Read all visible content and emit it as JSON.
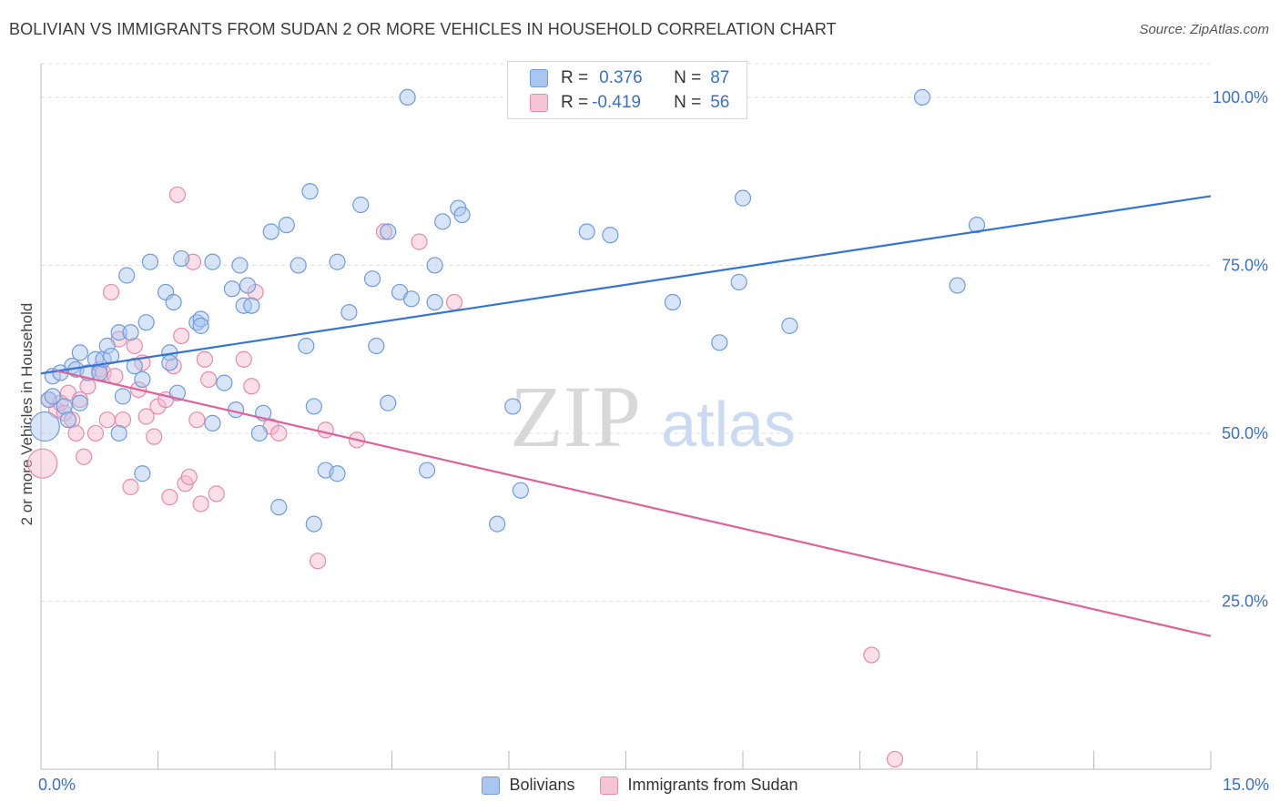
{
  "title": "BOLIVIAN VS IMMIGRANTS FROM SUDAN 2 OR MORE VEHICLES IN HOUSEHOLD CORRELATION CHART",
  "source": "Source: ZipAtlas.com",
  "watermark": {
    "zip": "ZIP",
    "atlas": "atlas"
  },
  "colors": {
    "blue_fill": "#a9c6f0",
    "blue_stroke": "#6f9bdc",
    "blue_line": "#3474d4",
    "pink_fill": "#f5b9cd",
    "pink_stroke": "#e88aaa",
    "pink_line": "#e0609a",
    "tick_label": "#3a6fd1",
    "grid": "#dddddd"
  },
  "legend_top": {
    "rows": [
      {
        "r_label": "R =",
        "r_value": "0.376",
        "n_label": "N =",
        "n_value": "87",
        "series": "blue"
      },
      {
        "r_label": "R =",
        "r_value": "-0.419",
        "n_label": "N =",
        "n_value": "56",
        "series": "pink"
      }
    ]
  },
  "chart_data": {
    "type": "scatter",
    "title": "BOLIVIAN VS IMMIGRANTS FROM SUDAN 2 OR MORE VEHICLES IN HOUSEHOLD CORRELATION CHART",
    "xlabel": "",
    "ylabel": "2 or more Vehicles in Household",
    "xlim": [
      0,
      15
    ],
    "ylim": [
      0,
      105
    ],
    "x_tick_labels": [
      "0.0%",
      "15.0%"
    ],
    "y_ticks": [
      25,
      50,
      75,
      100
    ],
    "y_tick_labels": [
      "25.0%",
      "50.0%",
      "75.0%",
      "100.0%"
    ],
    "grid": true,
    "legend_placement": "bottom",
    "series": [
      {
        "name": "Bolivians",
        "color": "#6f9bdc",
        "trend": {
          "x": [
            0,
            15
          ],
          "y": [
            58.9,
            85.3
          ]
        },
        "points": [
          [
            0.05,
            51
          ],
          [
            0.1,
            55
          ],
          [
            0.15,
            55.5
          ],
          [
            0.15,
            58.5
          ],
          [
            0.25,
            59
          ],
          [
            0.3,
            54
          ],
          [
            0.35,
            52
          ],
          [
            0.4,
            60
          ],
          [
            0.45,
            59.5
          ],
          [
            0.5,
            62
          ],
          [
            0.5,
            54.5
          ],
          [
            0.6,
            59
          ],
          [
            0.7,
            61
          ],
          [
            0.75,
            59
          ],
          [
            0.8,
            61
          ],
          [
            0.85,
            63
          ],
          [
            0.9,
            61.5
          ],
          [
            1.0,
            50
          ],
          [
            1.0,
            65
          ],
          [
            1.05,
            55.5
          ],
          [
            1.1,
            73.5
          ],
          [
            1.15,
            65
          ],
          [
            1.2,
            60
          ],
          [
            1.3,
            58
          ],
          [
            1.3,
            44
          ],
          [
            1.35,
            66.5
          ],
          [
            1.4,
            75.5
          ],
          [
            1.6,
            71
          ],
          [
            1.65,
            62
          ],
          [
            1.65,
            60.5
          ],
          [
            1.7,
            69.5
          ],
          [
            1.75,
            56
          ],
          [
            1.8,
            76
          ],
          [
            2.0,
            66.5
          ],
          [
            2.05,
            67
          ],
          [
            2.05,
            66
          ],
          [
            2.2,
            51.5
          ],
          [
            2.2,
            75.5
          ],
          [
            2.35,
            57.5
          ],
          [
            2.45,
            71.5
          ],
          [
            2.5,
            53.5
          ],
          [
            2.55,
            75
          ],
          [
            2.6,
            69
          ],
          [
            2.65,
            72
          ],
          [
            2.7,
            69
          ],
          [
            2.8,
            50
          ],
          [
            2.85,
            53
          ],
          [
            2.95,
            80
          ],
          [
            3.05,
            39
          ],
          [
            3.15,
            81
          ],
          [
            3.3,
            75
          ],
          [
            3.4,
            63
          ],
          [
            3.45,
            86
          ],
          [
            3.5,
            36.5
          ],
          [
            3.5,
            54
          ],
          [
            3.65,
            44.5
          ],
          [
            3.8,
            44
          ],
          [
            3.8,
            75.5
          ],
          [
            3.95,
            68
          ],
          [
            4.1,
            84
          ],
          [
            4.25,
            73
          ],
          [
            4.3,
            63
          ],
          [
            4.45,
            80
          ],
          [
            4.45,
            54.5
          ],
          [
            4.6,
            71
          ],
          [
            4.7,
            100
          ],
          [
            4.75,
            70
          ],
          [
            4.95,
            44.5
          ],
          [
            5.05,
            75
          ],
          [
            5.05,
            69.5
          ],
          [
            5.15,
            81.5
          ],
          [
            5.35,
            83.5
          ],
          [
            5.4,
            82.5
          ],
          [
            5.85,
            36.5
          ],
          [
            6.05,
            54
          ],
          [
            6.15,
            41.5
          ],
          [
            7.0,
            80
          ],
          [
            7.3,
            79.5
          ],
          [
            8.1,
            69.5
          ],
          [
            8.7,
            63.5
          ],
          [
            8.95,
            72.5
          ],
          [
            9.0,
            85
          ],
          [
            9.6,
            66
          ],
          [
            11.3,
            100
          ],
          [
            11.75,
            72
          ],
          [
            12.0,
            81
          ]
        ]
      },
      {
        "name": "Immigrants from Sudan",
        "color": "#e88aaa",
        "trend": {
          "x": [
            0.2,
            15
          ],
          "y": [
            59.3,
            19.8
          ]
        },
        "points": [
          [
            0.02,
            45.5
          ],
          [
            0.1,
            55
          ],
          [
            0.2,
            53.5
          ],
          [
            0.25,
            54.5
          ],
          [
            0.3,
            53
          ],
          [
            0.35,
            56
          ],
          [
            0.4,
            52
          ],
          [
            0.45,
            50
          ],
          [
            0.5,
            55
          ],
          [
            0.55,
            46.5
          ],
          [
            0.6,
            57
          ],
          [
            0.7,
            50
          ],
          [
            0.75,
            59.5
          ],
          [
            0.8,
            59
          ],
          [
            0.85,
            52
          ],
          [
            0.9,
            71
          ],
          [
            0.95,
            58.5
          ],
          [
            1.0,
            64
          ],
          [
            1.05,
            52
          ],
          [
            1.15,
            42
          ],
          [
            1.2,
            63
          ],
          [
            1.25,
            56.5
          ],
          [
            1.3,
            60.5
          ],
          [
            1.35,
            52.5
          ],
          [
            1.45,
            49.5
          ],
          [
            1.5,
            54
          ],
          [
            1.6,
            55
          ],
          [
            1.65,
            40.5
          ],
          [
            1.7,
            60
          ],
          [
            1.75,
            85.5
          ],
          [
            1.8,
            64.5
          ],
          [
            1.85,
            42.5
          ],
          [
            1.9,
            43.5
          ],
          [
            1.95,
            75.5
          ],
          [
            2.0,
            52
          ],
          [
            2.05,
            39.5
          ],
          [
            2.1,
            61
          ],
          [
            2.15,
            58
          ],
          [
            2.25,
            41
          ],
          [
            2.6,
            61
          ],
          [
            2.7,
            57
          ],
          [
            2.75,
            71
          ],
          [
            2.95,
            51
          ],
          [
            3.05,
            50
          ],
          [
            3.55,
            31
          ],
          [
            3.65,
            50.5
          ],
          [
            4.05,
            49
          ],
          [
            4.4,
            80
          ],
          [
            4.85,
            78.5
          ],
          [
            5.3,
            69.5
          ],
          [
            10.65,
            17
          ],
          [
            10.95,
            1.5
          ]
        ]
      }
    ]
  },
  "bottom_legend": [
    {
      "label": "Bolivians",
      "series": "blue"
    },
    {
      "label": "Immigrants from Sudan",
      "series": "pink"
    }
  ]
}
